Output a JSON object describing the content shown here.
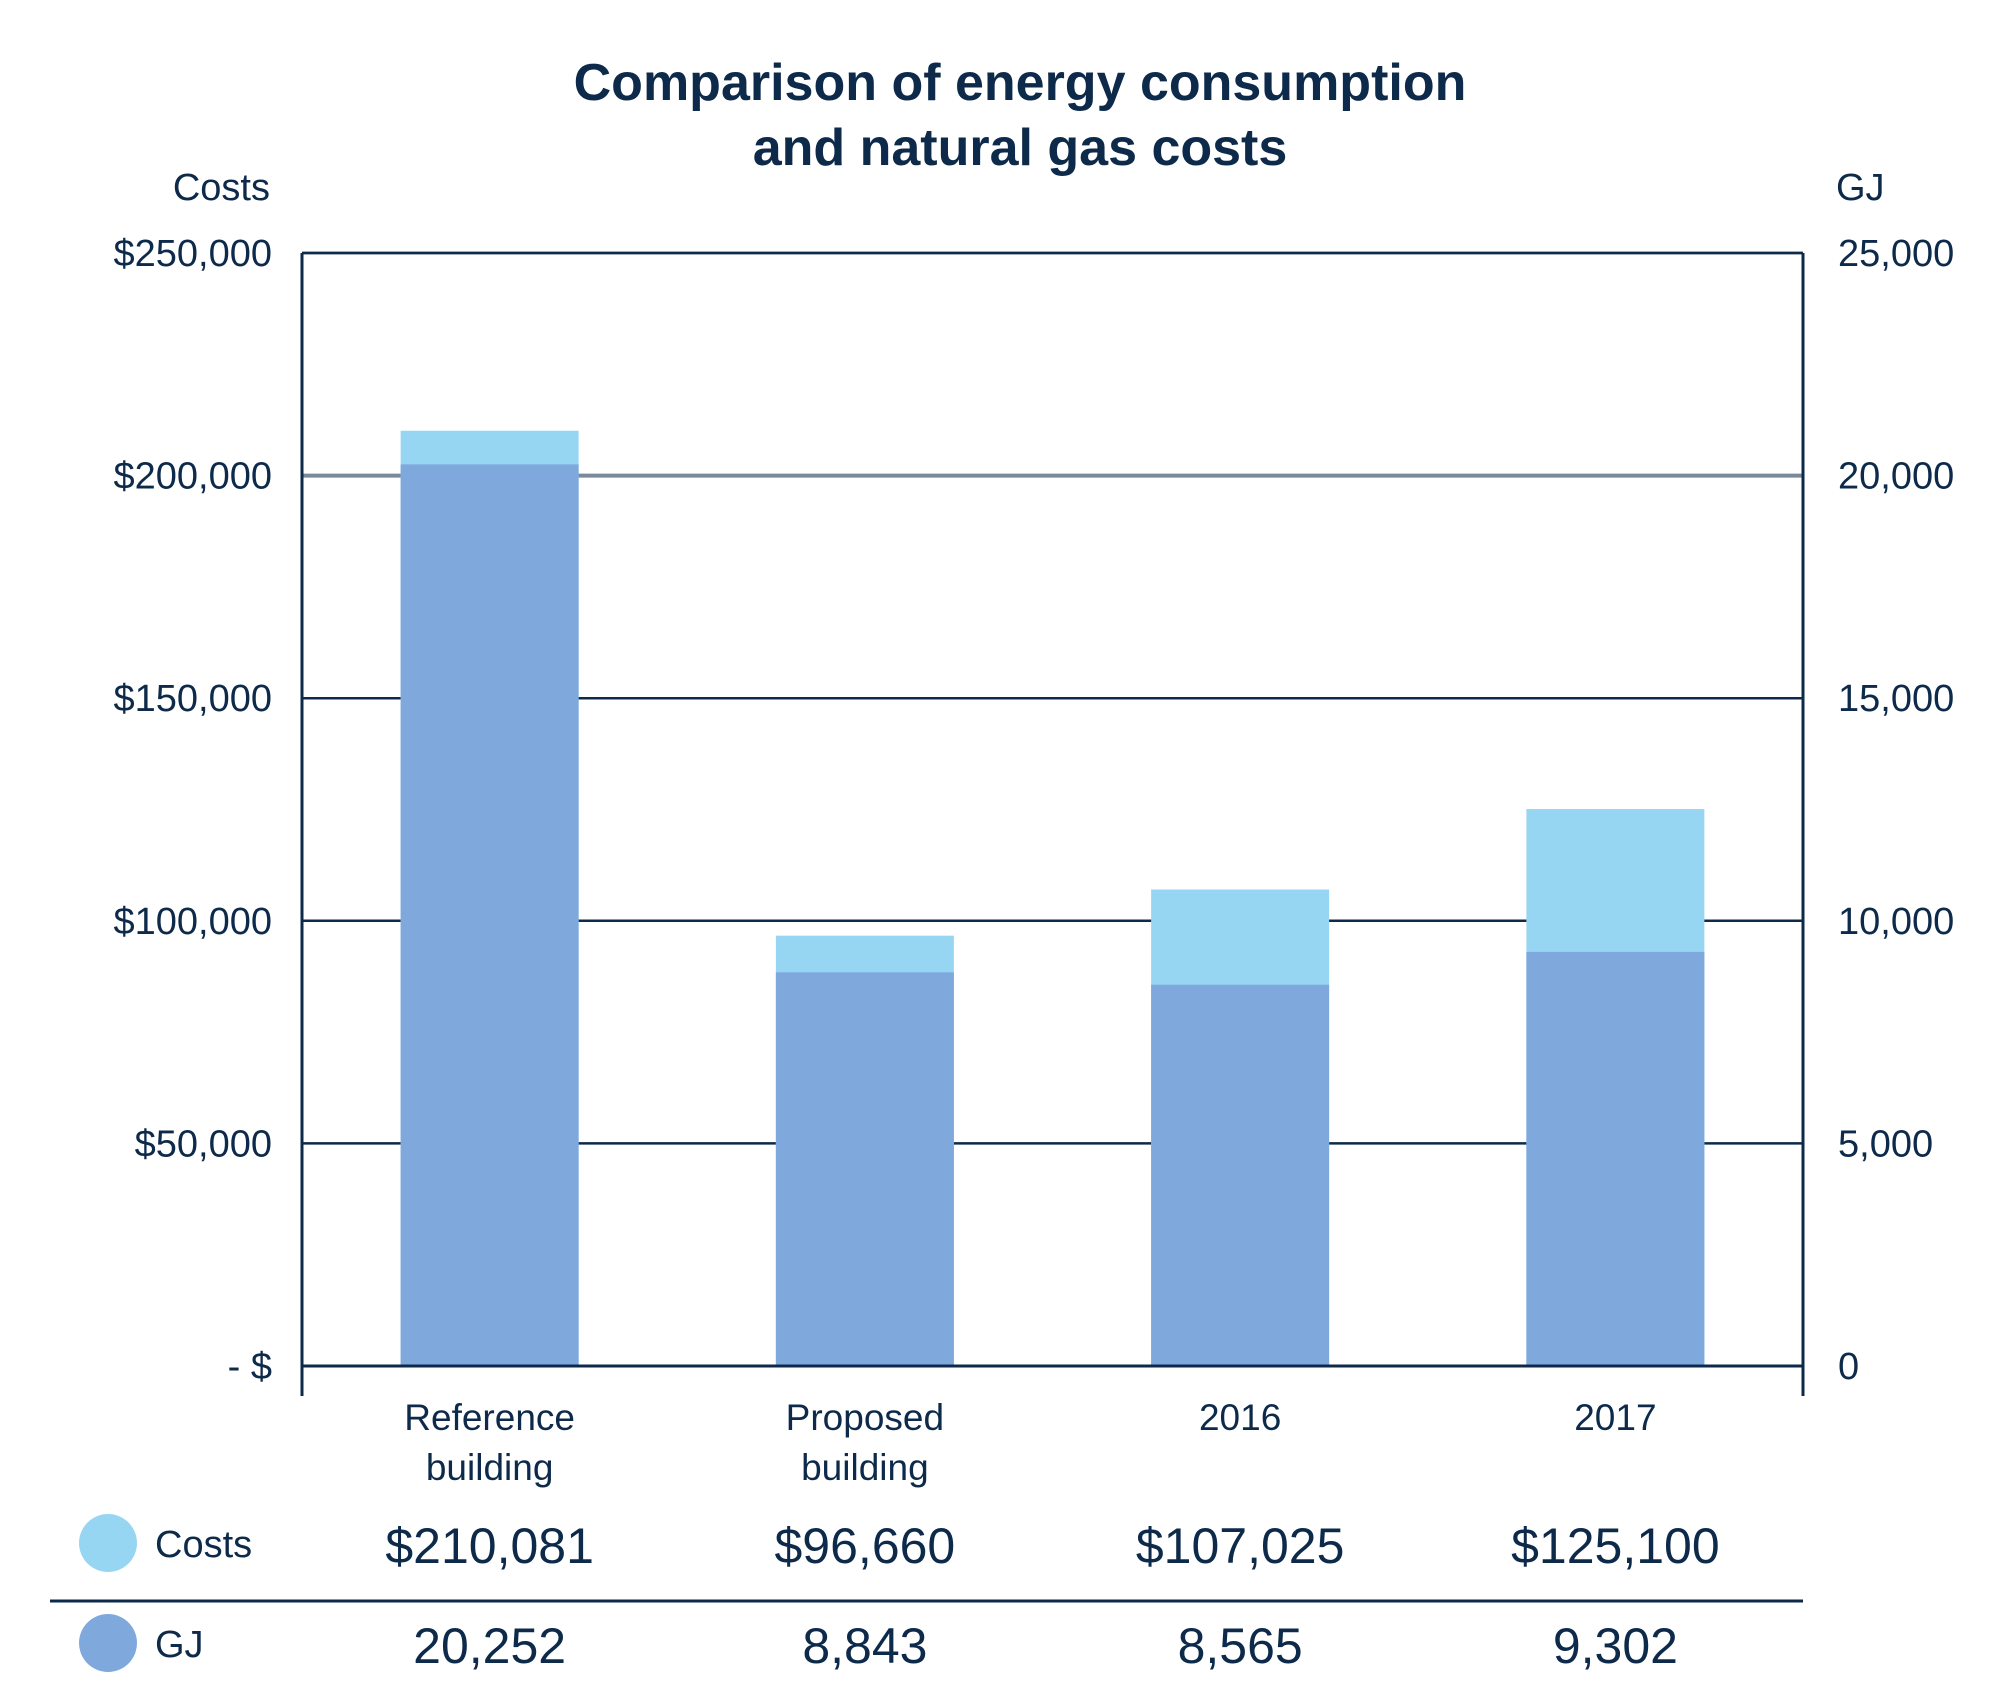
{
  "colors": {
    "costs": "#97d6f2",
    "gj": "#7fa8dd",
    "ink": "#0d2a4a",
    "grid": "#0d2a4a"
  },
  "chart_data": {
    "type": "bar",
    "title_lines": [
      "Comparison of energy consumption",
      "and natural gas costs"
    ],
    "y_left": {
      "title": "Costs",
      "ticks": [
        "- $",
        "$50,000",
        "$100,000",
        "$150,000",
        "$200,000",
        "$250,000"
      ],
      "lim": [
        0,
        250000
      ]
    },
    "y_right": {
      "title": "GJ",
      "ticks": [
        "0",
        "5,000",
        "10,000",
        "15,000",
        "20,000",
        "25,000"
      ],
      "lim": [
        0,
        25000
      ]
    },
    "categories": [
      [
        "Reference",
        "building"
      ],
      [
        "Proposed",
        "building"
      ],
      [
        "2016"
      ],
      [
        "2017"
      ]
    ],
    "series": [
      {
        "name": "Costs",
        "axis": "left",
        "values": [
          210081,
          96660,
          107025,
          125100
        ]
      },
      {
        "name": "GJ",
        "axis": "right",
        "values": [
          20252,
          8843,
          8565,
          9302
        ]
      }
    ],
    "table": {
      "rows": [
        {
          "label": "Costs",
          "values": [
            "$210,081",
            "$96,660",
            "$107,025",
            "$125,100"
          ]
        },
        {
          "label": "GJ",
          "values": [
            "20,252",
            "8,843",
            "8,565",
            "9,302"
          ]
        }
      ]
    },
    "grid": true
  }
}
